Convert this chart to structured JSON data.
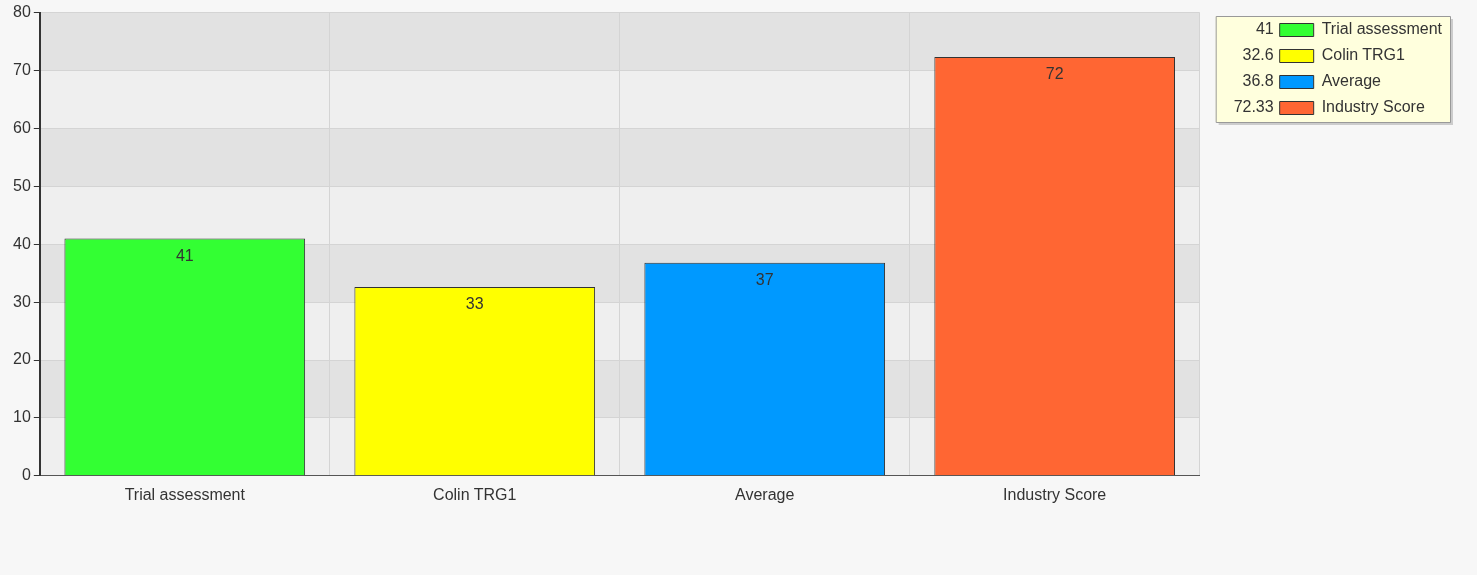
{
  "chart_data": {
    "type": "bar",
    "categories": [
      "Trial assessment",
      "Colin TRG1",
      "Average",
      "Industry Score"
    ],
    "series": [
      {
        "name": "Trial assessment",
        "color": "#33ff33",
        "values": [
          41,
          null,
          null,
          null
        ],
        "value_labels": [
          "41",
          null,
          null,
          null
        ]
      },
      {
        "name": "Colin TRG1",
        "color": "#ffff00",
        "values": [
          null,
          32.6,
          null,
          null
        ],
        "value_labels": [
          null,
          "33",
          null,
          null
        ]
      },
      {
        "name": "Average",
        "color": "#0099ff",
        "values": [
          null,
          null,
          36.8,
          null
        ],
        "value_labels": [
          null,
          null,
          "37",
          null
        ]
      },
      {
        "name": "Industry Score",
        "color": "#ff6633",
        "values": [
          null,
          null,
          null,
          72.33
        ],
        "value_labels": [
          null,
          null,
          null,
          "72"
        ]
      }
    ],
    "ylim": [
      0,
      80
    ],
    "yticks": [
      0,
      10,
      20,
      30,
      40,
      50,
      60,
      70,
      80
    ],
    "annotations": [
      "41",
      "32.6",
      "36.8",
      "72.33"
    ],
    "grid": true,
    "legend": "top right"
  }
}
